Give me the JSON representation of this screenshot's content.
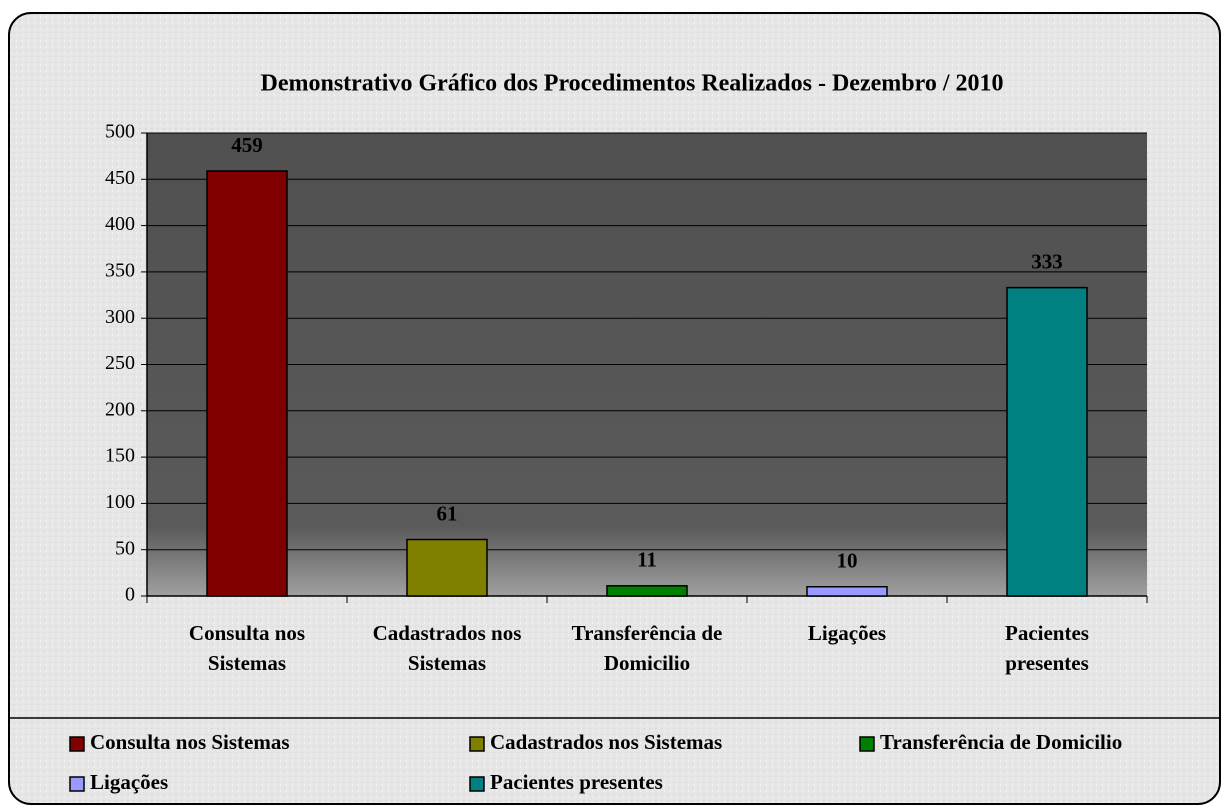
{
  "chart_data": {
    "type": "bar",
    "title": "Demonstrativo Gráfico dos Procedimentos Realizados - Dezembro / 2010",
    "categories": [
      "Consulta nos Sistemas",
      "Cadastrados nos Sistemas",
      "Transferência de Domicilio",
      "Ligações",
      "Pacientes presentes"
    ],
    "values": [
      459,
      61,
      11,
      10,
      333
    ],
    "colors": [
      "#800000",
      "#808000",
      "#008000",
      "#9999ff",
      "#008080"
    ],
    "ylim": [
      0,
      500
    ],
    "yticks": [
      0,
      50,
      100,
      150,
      200,
      250,
      300,
      350,
      400,
      450,
      500
    ],
    "grid": true,
    "legend": "bottom"
  }
}
